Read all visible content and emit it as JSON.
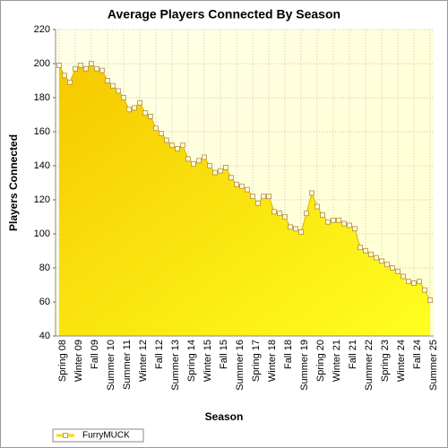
{
  "chart_data": {
    "type": "area",
    "title": "Average Players Connected By Season",
    "x_label": "Season",
    "y_label": "Players Connected",
    "categories": [
      "Spring 08",
      null,
      null,
      "Winter 09",
      null,
      null,
      "Fall 09",
      null,
      null,
      "Summer 10",
      null,
      null,
      "Summer 11",
      null,
      null,
      "Winter 12",
      null,
      null,
      "Fall 12",
      null,
      null,
      "Summer 13",
      null,
      null,
      "Spring 14",
      null,
      null,
      "Winter 15",
      null,
      null,
      "Fall 15",
      null,
      null,
      "Summer 16",
      null,
      null,
      "Spring 17",
      null,
      null,
      "Winter 18",
      null,
      null,
      "Fall 18",
      null,
      null,
      "Summer 19",
      null,
      null,
      "Spring 20",
      null,
      null,
      "Winter 21",
      null,
      null,
      "Fall 21",
      null,
      null,
      "Summer 22",
      null,
      null,
      "Spring 23",
      null,
      null,
      "Winter 24",
      null,
      null,
      "Fall 24",
      null,
      null,
      "Summer 25"
    ],
    "series": [
      {
        "name": "FurryMUCK",
        "color": "#ffd700",
        "values": [
          199,
          193,
          189,
          197,
          199,
          197,
          200,
          197,
          196,
          190,
          187,
          184,
          180,
          173,
          174,
          177,
          171,
          169,
          162,
          159,
          155,
          152,
          150,
          152,
          144,
          141,
          143,
          145,
          140,
          136,
          137,
          139,
          133,
          129,
          128,
          126,
          122,
          118,
          122,
          122,
          113,
          112,
          110,
          104,
          103,
          101,
          112,
          124,
          116,
          111,
          107,
          108,
          108,
          106,
          105,
          103,
          92,
          90,
          88,
          86,
          84,
          82,
          80,
          78,
          75,
          72,
          71,
          72,
          67,
          61
        ]
      }
    ],
    "ylim": [
      40,
      220
    ],
    "yticks": [
      40,
      60,
      80,
      100,
      120,
      140,
      160,
      180,
      200,
      220
    ],
    "grid": true
  }
}
